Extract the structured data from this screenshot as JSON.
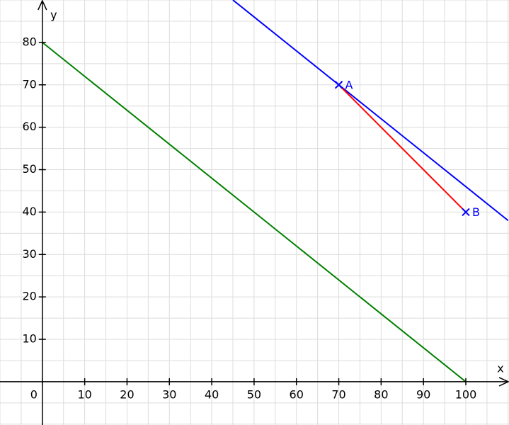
{
  "chart_data": {
    "type": "line",
    "x_label": "x",
    "y_label": "y",
    "xlim": [
      -10,
      110.2
    ],
    "ylim": [
      -10.2,
      90
    ],
    "xticks": [
      0,
      10,
      20,
      30,
      40,
      50,
      60,
      70,
      80,
      90,
      100
    ],
    "yticks": [
      10,
      20,
      30,
      40,
      50,
      60,
      70,
      80
    ],
    "grid": true,
    "series": [
      {
        "color": "#008000",
        "x": [
          0,
          100
        ],
        "values": [
          80,
          0
        ]
      },
      {
        "color": "#0000ff",
        "x": [
          45,
          110
        ],
        "values": [
          90,
          38
        ]
      },
      {
        "color": "#ff0000",
        "x": [
          70,
          100
        ],
        "values": [
          70,
          40
        ]
      }
    ],
    "points": {
      "color": "#0000ff",
      "labels": [
        "A",
        "B"
      ],
      "x": [
        70,
        100
      ],
      "values": [
        70,
        40
      ]
    }
  }
}
